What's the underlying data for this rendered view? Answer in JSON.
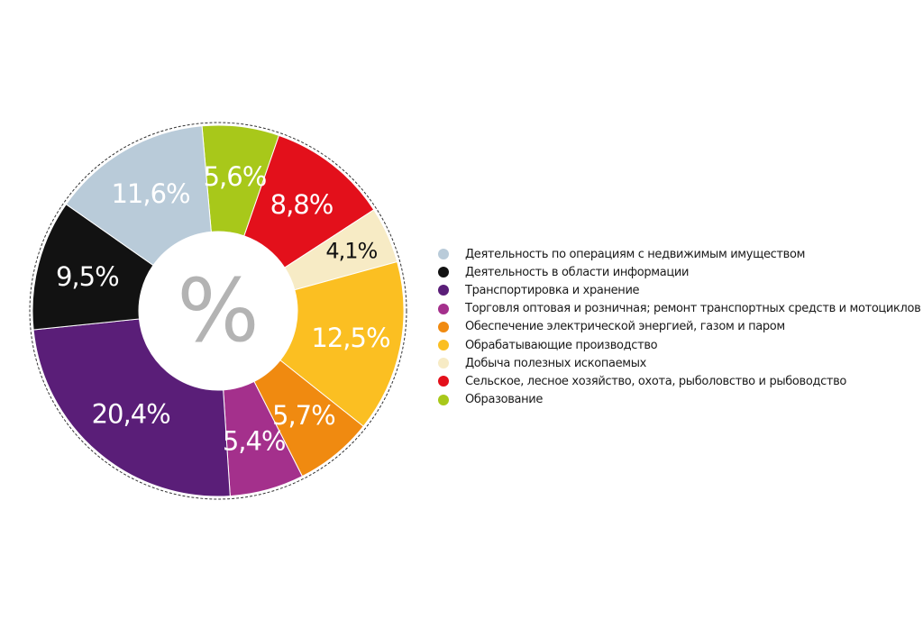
{
  "chart_data": {
    "type": "pie",
    "center_symbol": "%",
    "slices": [
      {
        "label_text": "5,6%",
        "value": 5.6,
        "color": "#a8c81a",
        "dark": false,
        "legend_index": 8
      },
      {
        "label_text": "8,8%",
        "value": 8.8,
        "color": "#e3101b",
        "dark": false,
        "legend_index": 7
      },
      {
        "label_text": "4,1%",
        "value": 4.1,
        "color": "#f7ebc5",
        "dark": true,
        "legend_index": 6
      },
      {
        "label_text": "12,5%",
        "value": 12.5,
        "color": "#fbbf22",
        "dark": false,
        "legend_index": 5
      },
      {
        "label_text": "5,7%",
        "value": 5.7,
        "color": "#f08a10",
        "dark": false,
        "legend_index": 4
      },
      {
        "label_text": "5,4%",
        "value": 5.4,
        "color": "#a4308c",
        "dark": false,
        "legend_index": 3
      },
      {
        "label_text": "20,4%",
        "value": 20.4,
        "color": "#5a1e78",
        "dark": false,
        "legend_index": 2
      },
      {
        "label_text": "9,5%",
        "value": 9.5,
        "color": "#121212",
        "dark": false,
        "legend_index": 1
      },
      {
        "label_text": "11,6%",
        "value": 11.6,
        "color": "#b9cbd9",
        "dark": false,
        "legend_index": 0
      }
    ],
    "legend": [
      {
        "label": "Деятельность по операциям с недвижимым имуществом",
        "color": "#b9cbd9"
      },
      {
        "label": "Деятельность в области информации",
        "color": "#121212"
      },
      {
        "label": "Транспортировка и хранение",
        "color": "#5a1e78"
      },
      {
        "label": "Торговля оптовая и розничная; ремонт транспортных средств и мотоциклов",
        "color": "#a4308c"
      },
      {
        "label": "Обеспечение электрической энергией, газом и паром",
        "color": "#f08a10"
      },
      {
        "label": "Обрабатывающие производство",
        "color": "#fbbf22"
      },
      {
        "label": "Добыча полезных ископаемых",
        "color": "#f7ebc5"
      },
      {
        "label": "Сельское, лесное хозяйство, охота, рыболовство и рыбоводство",
        "color": "#e3101b"
      },
      {
        "label": "Образование",
        "color": "#a8c81a"
      }
    ],
    "legend_placement": "right"
  }
}
